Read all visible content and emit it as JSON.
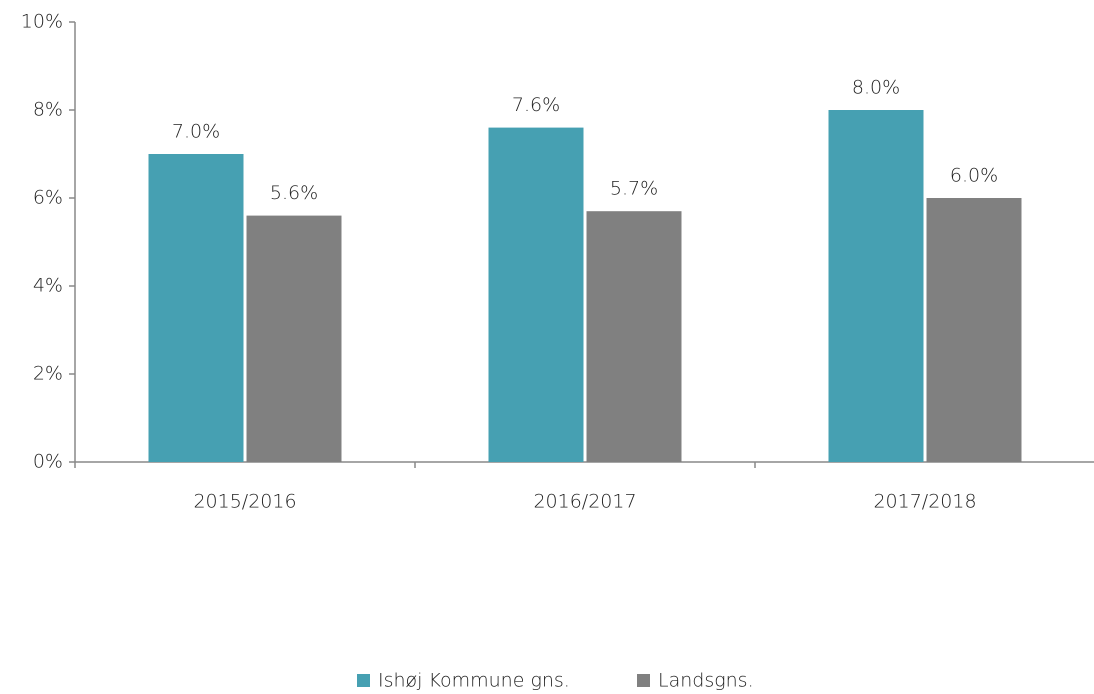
{
  "chart_data": {
    "type": "bar",
    "categories": [
      "2015/2016",
      "2016/2017",
      "2017/2018"
    ],
    "series": [
      {
        "name": "Ishøj Kommune gns.",
        "color": "#46a0b2",
        "values": [
          7.0,
          7.6,
          8.0
        ],
        "value_labels": [
          "7.0%",
          "7.6%",
          "8.0%"
        ]
      },
      {
        "name": "Landsgns.",
        "color": "#808080",
        "values": [
          5.6,
          5.7,
          6.0
        ],
        "value_labels": [
          "5.6%",
          "5.7%",
          "6.0%"
        ]
      }
    ],
    "ylim": [
      0,
      10
    ],
    "yticks": [
      {
        "value": 0,
        "label": "0%"
      },
      {
        "value": 2,
        "label": "2%"
      },
      {
        "value": 4,
        "label": "4%"
      },
      {
        "value": 6,
        "label": "6%"
      },
      {
        "value": 8,
        "label": "8%"
      },
      {
        "value": 10,
        "label": "10%"
      }
    ],
    "grid": false,
    "legend": "bottom"
  }
}
